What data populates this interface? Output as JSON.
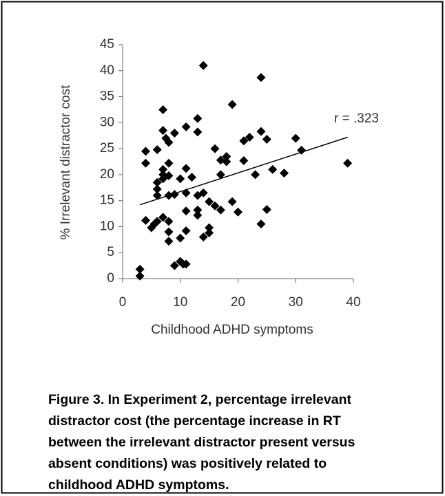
{
  "chart_data": {
    "type": "scatter",
    "x_label": "Childhood ADHD symptoms",
    "y_label": "% Irrelevant distractor cost",
    "annotation": "r = .323",
    "color": "#000000",
    "xlim": [
      0,
      40
    ],
    "xticks": [
      0,
      10,
      20,
      30,
      40
    ],
    "ylim": [
      0,
      45
    ],
    "yticks": [
      0,
      5,
      10,
      15,
      20,
      25,
      30,
      35,
      40,
      45
    ],
    "grid": false,
    "x": [
      3,
      3,
      4,
      4,
      4,
      5,
      5.5,
      6,
      6,
      6,
      6,
      6,
      7,
      7,
      7,
      7,
      7,
      7,
      7.5,
      8,
      8,
      8,
      8,
      8,
      8,
      8,
      9,
      9,
      9,
      10,
      10,
      10,
      10.5,
      11,
      11,
      11,
      11,
      11,
      11,
      12,
      13,
      13,
      13,
      13,
      13,
      14,
      14,
      14,
      15,
      15,
      15,
      16,
      16,
      17,
      17,
      17,
      18,
      18,
      19,
      19,
      20,
      21,
      21,
      22,
      23,
      24,
      24,
      24,
      25,
      25,
      26,
      28,
      30,
      31,
      39
    ],
    "values": [
      1.8,
      0.5,
      24.5,
      22.2,
      11.2,
      9.8,
      10.5,
      24.8,
      18.5,
      17.2,
      16,
      11,
      32.5,
      28.5,
      21,
      20,
      19.2,
      11.8,
      27,
      26.2,
      22.2,
      19.8,
      16,
      11,
      9,
      7.2,
      28,
      16.2,
      2.5,
      19.2,
      7.8,
      3.3,
      2.8,
      29.2,
      21.2,
      16.5,
      13,
      9.2,
      2.8,
      19.5,
      30.8,
      28.2,
      16,
      13.2,
      12.2,
      41,
      16.5,
      8,
      14.8,
      9.8,
      8.8,
      25,
      14,
      22.8,
      13.2,
      20,
      23.5,
      22.5,
      33.5,
      14.8,
      12.8,
      26.5,
      22.7,
      27.2,
      20,
      38.7,
      28.3,
      10.5,
      26.8,
      13.3,
      21,
      20.3,
      27,
      24.7,
      22.2
    ],
    "trendline": {
      "x": [
        3,
        39
      ],
      "y": [
        14.2,
        27.2
      ]
    }
  },
  "caption_lines": [
    "Figure 3. In Experiment 2, percentage irrelevant",
    "distractor cost (the percentage increase in RT",
    "between the irrelevant distractor present versus",
    "absent conditions) was positively related to",
    "childhood ADHD symptoms."
  ]
}
